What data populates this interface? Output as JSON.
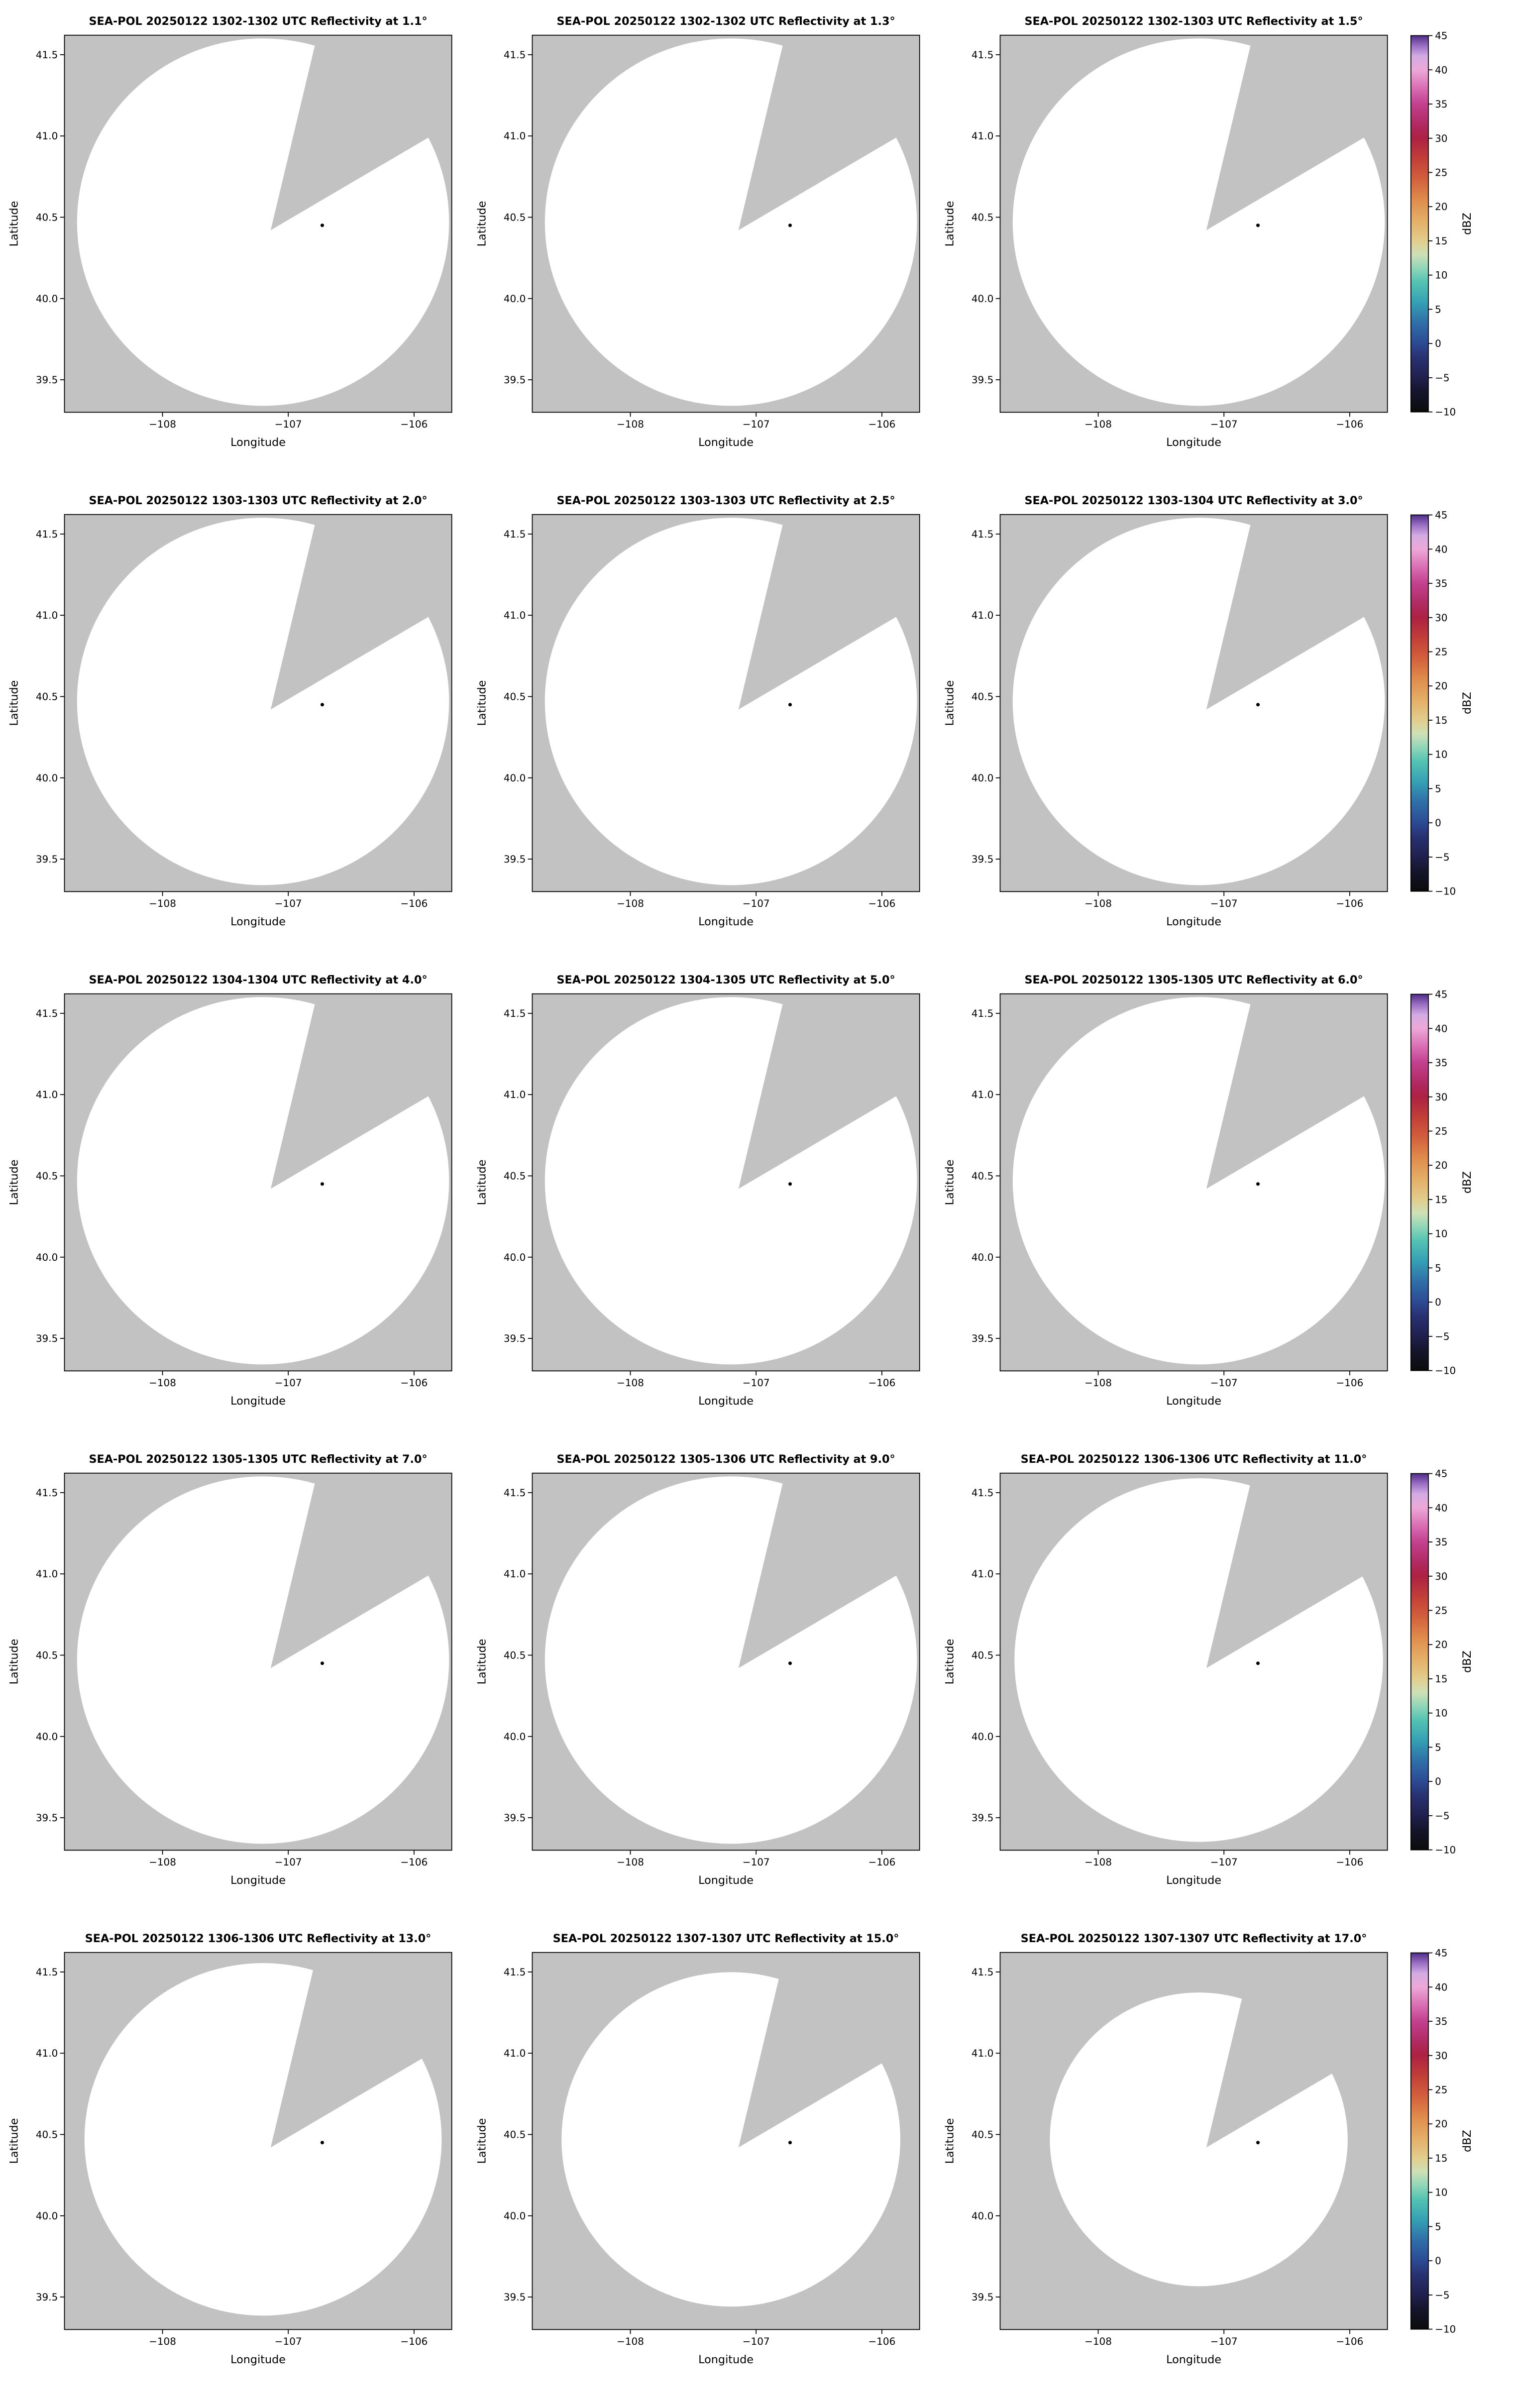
{
  "page": {
    "background": "#ffffff"
  },
  "chart_data": {
    "type": "radar_ppi_multipanel",
    "description": "SEA-POL radar PPI reflectivity quick-look grid. Each panel shows the scan coverage circle (white) over a gray map background with a blocked/missing sector wedge toward the north-northeast; no reflectivity echoes above the colorbar minimum are visible in any panel.",
    "rows": 5,
    "cols": 3,
    "x": {
      "label": "Longitude",
      "lim": [
        -108.78,
        -105.7
      ],
      "ticks": [
        {
          "value": -108,
          "label": "−108"
        },
        {
          "value": -107,
          "label": "−107"
        },
        {
          "value": -106,
          "label": "−106"
        }
      ]
    },
    "y": {
      "label": "Latitude",
      "lim": [
        39.3,
        41.62
      ],
      "ticks": [
        {
          "value": 39.5,
          "label": "39.5"
        },
        {
          "value": 40.0,
          "label": "40.0"
        },
        {
          "value": 40.5,
          "label": "40.5"
        },
        {
          "value": 41.0,
          "label": "41.0"
        },
        {
          "value": 41.5,
          "label": "41.5"
        }
      ]
    },
    "colorbar": {
      "label": "dBZ",
      "min": -10,
      "max": 45,
      "ticks": [
        {
          "value": -10,
          "label": "−10"
        },
        {
          "value": -5,
          "label": "−5"
        },
        {
          "value": 0,
          "label": "0"
        },
        {
          "value": 5,
          "label": "5"
        },
        {
          "value": 10,
          "label": "10"
        },
        {
          "value": 15,
          "label": "15"
        },
        {
          "value": 20,
          "label": "20"
        },
        {
          "value": 25,
          "label": "25"
        },
        {
          "value": 30,
          "label": "30"
        },
        {
          "value": 35,
          "label": "35"
        },
        {
          "value": 40,
          "label": "40"
        },
        {
          "value": 45,
          "label": "45"
        }
      ],
      "colormap_stops": [
        [
          -10,
          "#0b0b0b"
        ],
        [
          -7,
          "#15152e"
        ],
        [
          -5,
          "#20204e"
        ],
        [
          -2,
          "#283272"
        ],
        [
          0,
          "#2c4a94"
        ],
        [
          3,
          "#2f6fa8"
        ],
        [
          6,
          "#35a0b4"
        ],
        [
          9,
          "#55c3b2"
        ],
        [
          11,
          "#90d6b8"
        ],
        [
          13,
          "#cfe0b6"
        ],
        [
          15,
          "#e2cd8d"
        ],
        [
          18,
          "#e4ae66"
        ],
        [
          21,
          "#e08c4d"
        ],
        [
          24,
          "#d2603c"
        ],
        [
          27,
          "#c13f39"
        ],
        [
          30,
          "#ad2143"
        ],
        [
          32,
          "#b02a62"
        ],
        [
          35,
          "#c2418f"
        ],
        [
          37,
          "#d667ae"
        ],
        [
          40,
          "#eda8d7"
        ],
        [
          42,
          "#d3abe3"
        ],
        [
          43.5,
          "#9b6fc4"
        ],
        [
          45,
          "#4f2d87"
        ]
      ]
    },
    "radar_site": {
      "lon": -106.73,
      "lat": 40.45
    },
    "scan": {
      "center_lon": -107.2,
      "center_lat": 40.47,
      "rx_deg": 1.48,
      "ry_deg": 1.13,
      "wedge_polygon": [
        [
          -107.14,
          40.42
        ],
        [
          -106.76,
          41.65
        ],
        [
          -105.6,
          41.65
        ],
        [
          -105.6,
          41.12
        ]
      ]
    },
    "style": {
      "map_bg": "#c2c2c2",
      "coverage_fill": "#ffffff",
      "spine": "#000000"
    },
    "echoes": [],
    "panels": [
      {
        "title": "SEA-POL 20250122 1302-1302 UTC Reflectivity at 1.1°",
        "date": "20250122",
        "time_utc": "1302-1302",
        "elevation_deg": 1.1,
        "range_scale": 1.0
      },
      {
        "title": "SEA-POL 20250122 1302-1302 UTC Reflectivity at 1.3°",
        "date": "20250122",
        "time_utc": "1302-1302",
        "elevation_deg": 1.3,
        "range_scale": 1.0
      },
      {
        "title": "SEA-POL 20250122 1302-1303 UTC Reflectivity at 1.5°",
        "date": "20250122",
        "time_utc": "1302-1303",
        "elevation_deg": 1.5,
        "range_scale": 1.0
      },
      {
        "title": "SEA-POL 20250122 1303-1303 UTC Reflectivity at 2.0°",
        "date": "20250122",
        "time_utc": "1303-1303",
        "elevation_deg": 2.0,
        "range_scale": 1.0
      },
      {
        "title": "SEA-POL 20250122 1303-1303 UTC Reflectivity at 2.5°",
        "date": "20250122",
        "time_utc": "1303-1303",
        "elevation_deg": 2.5,
        "range_scale": 1.0
      },
      {
        "title": "SEA-POL 20250122 1303-1304 UTC Reflectivity at 3.0°",
        "date": "20250122",
        "time_utc": "1303-1304",
        "elevation_deg": 3.0,
        "range_scale": 1.0
      },
      {
        "title": "SEA-POL 20250122 1304-1304 UTC Reflectivity at 4.0°",
        "date": "20250122",
        "time_utc": "1304-1304",
        "elevation_deg": 4.0,
        "range_scale": 1.0
      },
      {
        "title": "SEA-POL 20250122 1304-1305 UTC Reflectivity at 5.0°",
        "date": "20250122",
        "time_utc": "1304-1305",
        "elevation_deg": 5.0,
        "range_scale": 1.0
      },
      {
        "title": "SEA-POL 20250122 1305-1305 UTC Reflectivity at 6.0°",
        "date": "20250122",
        "time_utc": "1305-1305",
        "elevation_deg": 6.0,
        "range_scale": 1.0
      },
      {
        "title": "SEA-POL 20250122 1305-1305 UTC Reflectivity at 7.0°",
        "date": "20250122",
        "time_utc": "1305-1305",
        "elevation_deg": 7.0,
        "range_scale": 1.0
      },
      {
        "title": "SEA-POL 20250122 1305-1306 UTC Reflectivity at 9.0°",
        "date": "20250122",
        "time_utc": "1305-1306",
        "elevation_deg": 9.0,
        "range_scale": 1.0
      },
      {
        "title": "SEA-POL 20250122 1306-1306 UTC Reflectivity at 11.0°",
        "date": "20250122",
        "time_utc": "1306-1306",
        "elevation_deg": 11.0,
        "range_scale": 0.99
      },
      {
        "title": "SEA-POL 20250122 1306-1306 UTC Reflectivity at 13.0°",
        "date": "20250122",
        "time_utc": "1306-1306",
        "elevation_deg": 13.0,
        "range_scale": 0.96
      },
      {
        "title": "SEA-POL 20250122 1307-1307 UTC Reflectivity at 15.0°",
        "date": "20250122",
        "time_utc": "1307-1307",
        "elevation_deg": 15.0,
        "range_scale": 0.91
      },
      {
        "title": "SEA-POL 20250122 1307-1307 UTC Reflectivity at 17.0°",
        "date": "20250122",
        "time_utc": "1307-1307",
        "elevation_deg": 17.0,
        "range_scale": 0.8
      }
    ]
  }
}
